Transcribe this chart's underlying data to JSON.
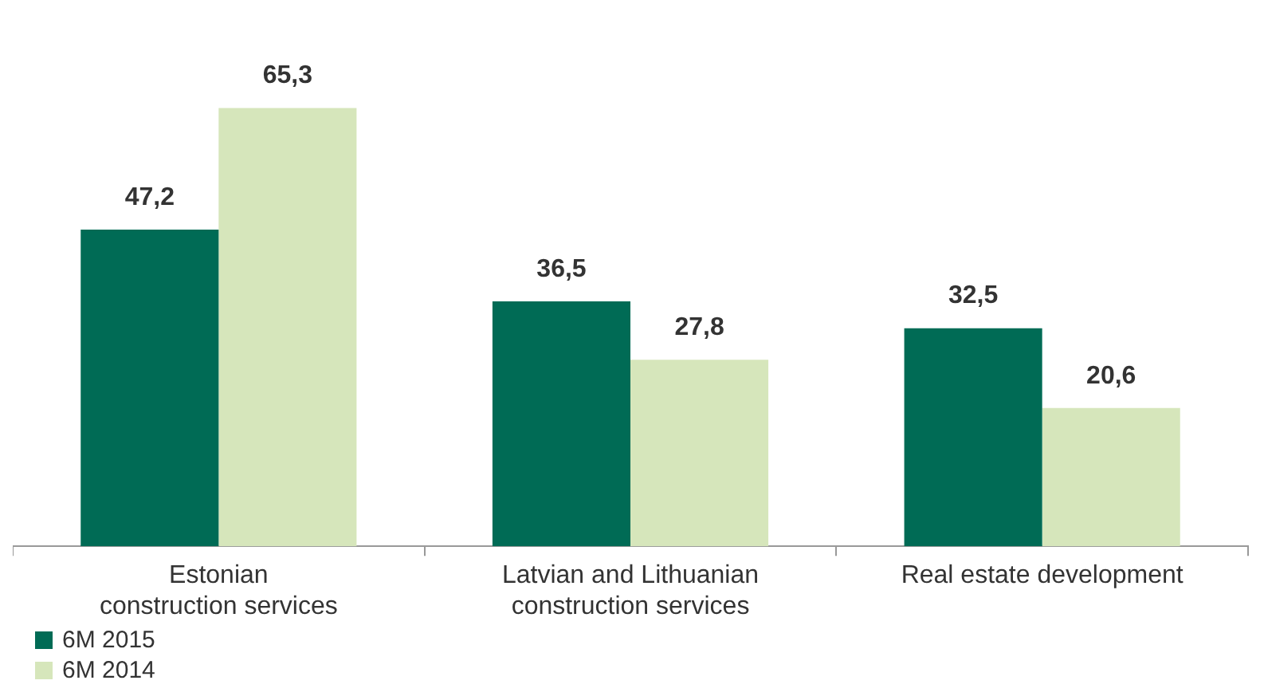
{
  "chart_data": {
    "type": "bar",
    "categories": [
      "Estonian\nconstruction services",
      "Latvian and Lithuanian\nconstruction services",
      "Real estate development"
    ],
    "series": [
      {
        "name": "6M 2015",
        "color": "#006b55",
        "values": [
          47.2,
          36.5,
          32.5
        ],
        "value_labels": [
          "47,2",
          "36,5",
          "32,5"
        ]
      },
      {
        "name": "6M 2014",
        "color": "#d6e6bb",
        "values": [
          65.3,
          27.8,
          20.6
        ],
        "value_labels": [
          "65,3",
          "27,8",
          "20,6"
        ]
      }
    ],
    "legend": "bottom left"
  }
}
